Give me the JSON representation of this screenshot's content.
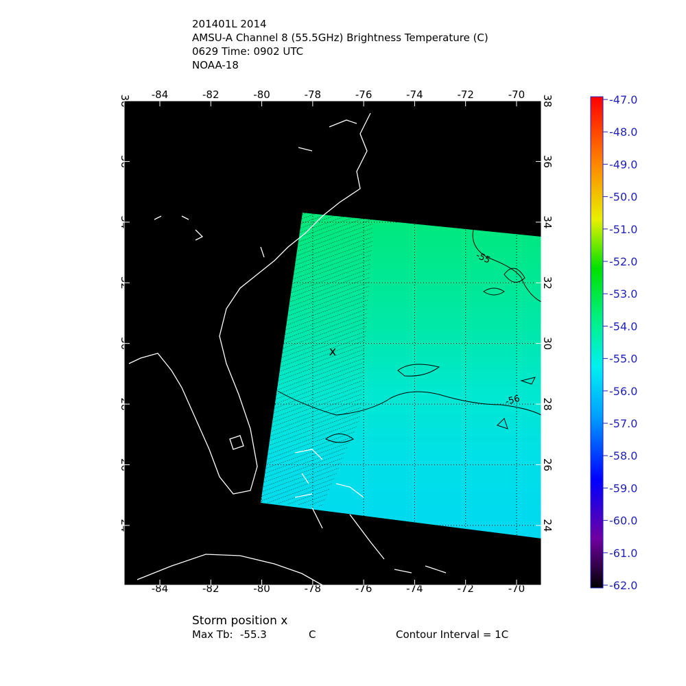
{
  "title_lines": [
    "201401L 2014",
    "AMSU-A Channel 8 (55.5GHz) Brightness Temperature (C)",
    "0629 Time: 0902 UTC",
    "NOAA-18"
  ],
  "map": {
    "xlim": [
      -85.4,
      -69.03
    ],
    "ylim": [
      22.03,
      38
    ],
    "xticks": [
      -84,
      -82,
      -80,
      -78,
      -76,
      -74,
      -72,
      -70
    ],
    "yticks": [
      24,
      26,
      28,
      30,
      32,
      34,
      36,
      38
    ],
    "grid": true,
    "contour_labels": [
      "-55",
      "-56"
    ],
    "storm_marker": "x"
  },
  "colorbar": {
    "lim": [
      -62,
      -47
    ],
    "ticks": [
      {
        "value": -47,
        "label": "-47.0"
      },
      {
        "value": -48,
        "label": "-48.0"
      },
      {
        "value": -49,
        "label": "-49.0"
      },
      {
        "value": -50,
        "label": "-50.0"
      },
      {
        "value": -51,
        "label": "-51.0"
      },
      {
        "value": -52,
        "label": "-52.0"
      },
      {
        "value": -53,
        "label": "-53.0"
      },
      {
        "value": -54,
        "label": "-54.0"
      },
      {
        "value": -55,
        "label": "-55.0"
      },
      {
        "value": -56,
        "label": "-56.0"
      },
      {
        "value": -57,
        "label": "-57.0"
      },
      {
        "value": -58,
        "label": "-58.0"
      },
      {
        "value": -59,
        "label": "-59.0"
      },
      {
        "value": -60,
        "label": "-60.0"
      },
      {
        "value": -61,
        "label": "-61.0"
      },
      {
        "value": -62,
        "label": "-62.0"
      }
    ]
  },
  "footer": {
    "storm_position": "Storm position x",
    "max_tb_label": "Max Tb:",
    "max_tb_value": "-55.3",
    "max_tb_unit": "C",
    "contour_interval": "Contour Interval = 1C"
  }
}
